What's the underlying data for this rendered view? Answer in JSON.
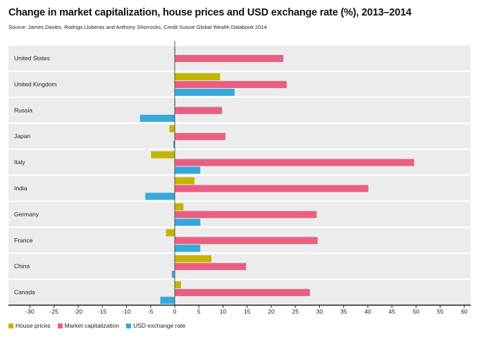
{
  "chart_data": {
    "type": "bar",
    "orientation": "horizontal",
    "title": "Change in market capitalization, house prices and USD exchange rate (%), 2013–2014",
    "subtitle": "Source: James Davies, Rodrigo Lluberas and Anthony Shorrocks, Credit Suisse Global Wealth Databook 2014",
    "categories": [
      "United States",
      "United Kingdom",
      "Russia",
      "Japan",
      "Italy",
      "India",
      "Germany",
      "France",
      "China",
      "Canada"
    ],
    "series": [
      {
        "name": "House prices",
        "color": "#c4b400",
        "values": [
          0.1,
          9.4,
          0.1,
          -1.1,
          -4.9,
          4.1,
          1.8,
          -1.8,
          7.6,
          1.3
        ]
      },
      {
        "name": "Market capitalization",
        "color": "#e85f82",
        "values": [
          22.5,
          23.2,
          9.8,
          10.5,
          49.6,
          40.1,
          29.4,
          29.6,
          14.8,
          28.0
        ]
      },
      {
        "name": "USD exchange rate",
        "color": "#36a8db",
        "values": [
          0,
          12.4,
          -7.2,
          -0.3,
          5.3,
          -6.1,
          5.3,
          5.3,
          -0.6,
          -3.0
        ]
      }
    ],
    "xlim": [
      -30,
      60
    ],
    "xticks": [
      "-30",
      "-25",
      "-20",
      "-15",
      "-10",
      "-5",
      "0",
      "5",
      "10",
      "15",
      "20",
      "25",
      "30",
      "35",
      "40",
      "45",
      "50",
      "55",
      "60"
    ],
    "legend_position": "bottom-left",
    "grid": false
  }
}
